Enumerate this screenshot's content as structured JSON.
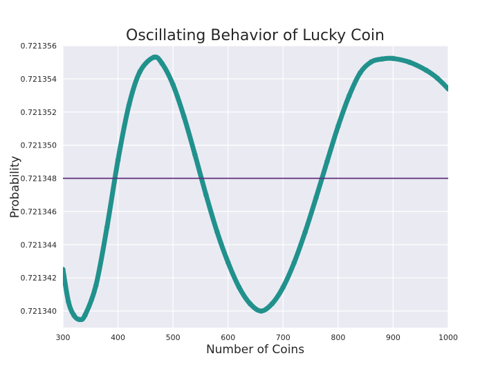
{
  "chart_data": {
    "type": "scatter",
    "title": "Oscillating Behavior of Lucky Coin",
    "xlabel": "Number of Coins",
    "ylabel": "Probability",
    "xlim": [
      300,
      1000
    ],
    "ylim": [
      0.721339,
      0.721356
    ],
    "grid": true,
    "xticks": [
      "300",
      "400",
      "500",
      "600",
      "700",
      "800",
      "900",
      "1000"
    ],
    "yticks": [
      "0.721340",
      "0.721342",
      "0.721344",
      "0.721346",
      "0.721348",
      "0.721350",
      "0.721352",
      "0.721354",
      "0.721356"
    ],
    "series": [
      {
        "kind": "points",
        "color": "#21918c",
        "x": [
          300,
          310,
          320,
          330,
          340,
          360,
          380,
          400,
          420,
          440,
          465,
          480,
          500,
          520,
          540,
          560,
          580,
          600,
          620,
          640,
          660,
          680,
          700,
          720,
          740,
          760,
          780,
          800,
          820,
          840,
          860,
          880,
          900,
          930,
          960,
          980,
          1000
        ],
        "y": [
          0.7213425,
          0.721340558,
          0.721339738,
          0.72133949,
          0.721339738,
          0.721341548,
          0.72134505,
          0.721349105,
          0.721352424,
          0.721354442,
          0.7213553,
          0.72135493,
          0.721353646,
          0.721351715,
          0.72134941,
          0.721347004,
          0.72134478,
          0.72134293,
          0.721341436,
          0.72134044,
          0.72134,
          0.72134044,
          0.721341436,
          0.721342911,
          0.721344759,
          0.721346844,
          0.721349022,
          0.721351144,
          0.721352977,
          0.72135436,
          0.72135502,
          0.7213552,
          0.72135523,
          0.721355,
          0.72135452,
          0.72135405,
          0.7213534
        ]
      },
      {
        "kind": "hline",
        "color": "#5c2b7a",
        "y": 0.721348
      }
    ]
  }
}
